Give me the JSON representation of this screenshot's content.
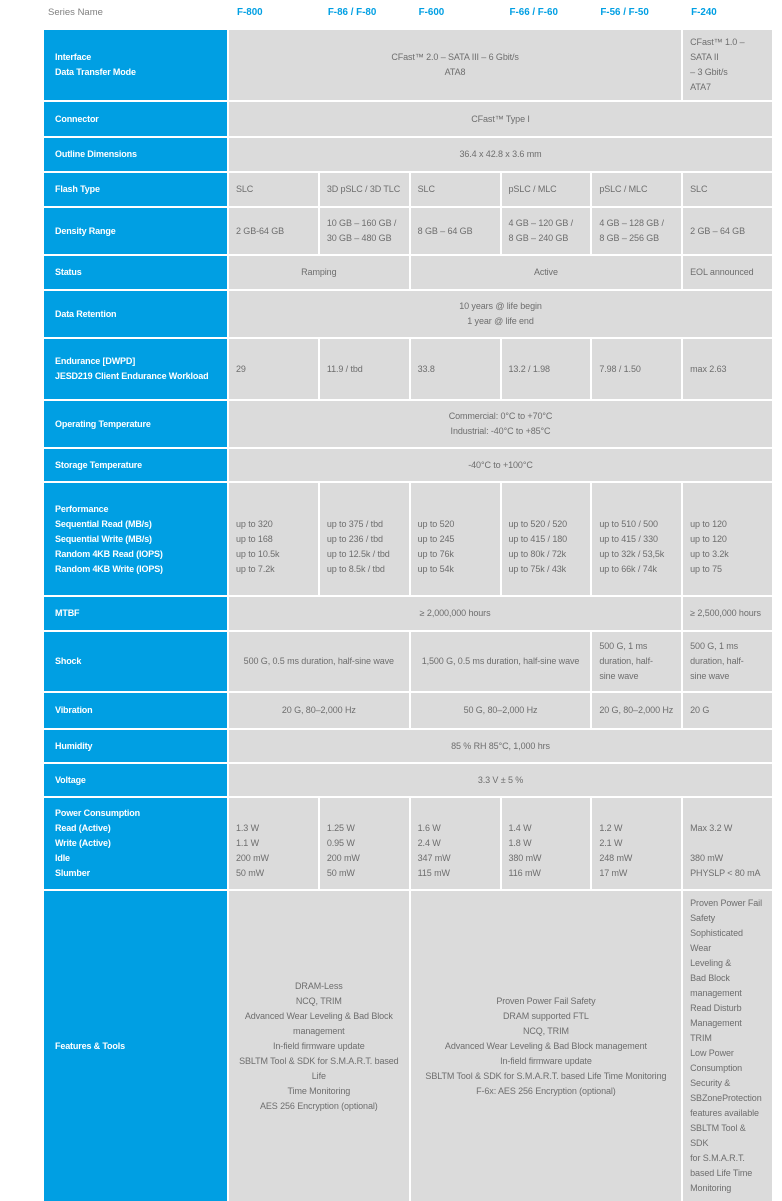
{
  "colors": {
    "accent_blue": "#009fe3",
    "cell_background": "#dbdbdb",
    "cell_text": "#6e6e6e",
    "label_text": "#ffffff",
    "header_label_text": "#7f7f7f"
  },
  "table": {
    "header": {
      "series_label": "Series Name",
      "columns": [
        "F-800",
        "F-86 / F-80",
        "F-600",
        "F-66 / F-60",
        "F-56 / F-50",
        "F-240"
      ]
    },
    "rows": [
      {
        "label": "Interface\nData Transfer Mode",
        "cells": [
          "CFast™ 2.0 – SATA III – 6 Gbit/s\nATA8",
          "CFast™ 1.0 –SATA II\n– 3 Gbit/s\nATA7"
        ]
      },
      {
        "label": "Connector",
        "cells": [
          "CFast™ Type I"
        ]
      },
      {
        "label": "Outline Dimensions",
        "cells": [
          "36.4 x 42.8 x 3.6 mm"
        ]
      },
      {
        "label": "Flash Type",
        "cells": [
          "SLC",
          "3D pSLC / 3D TLC",
          "SLC",
          "pSLC / MLC",
          "pSLC / MLC",
          "SLC"
        ]
      },
      {
        "label": "Density Range",
        "cells": [
          "2 GB-64 GB",
          "10 GB – 160 GB /\n30 GB – 480 GB",
          "8 GB – 64 GB",
          "4 GB – 120 GB /\n8 GB – 240 GB",
          "4 GB – 128 GB /\n8 GB – 256 GB",
          "2 GB – 64 GB"
        ]
      },
      {
        "label": "Status",
        "cells": [
          "Ramping",
          "Active",
          "EOL announced"
        ]
      },
      {
        "label": "Data Retention",
        "cells": [
          "10 years @ life begin\n1 year @ life end"
        ]
      },
      {
        "label": "Endurance [DWPD]\nJESD219 Client Endurance Workload",
        "cells": [
          "29",
          "11.9 / tbd",
          "33.8",
          "13.2 / 1.98",
          "7.98 / 1.50",
          "max 2.63"
        ]
      },
      {
        "label": "Operating Temperature",
        "cells": [
          "Commercial: 0°C to +70°C\nIndustrial: -40°C to +85°C"
        ]
      },
      {
        "label": "Storage Temperature",
        "cells": [
          "-40°C to +100°C"
        ]
      },
      {
        "label": "Performance\nSequential Read (MB/s)\nSequential Write (MB/s)\nRandom 4KB Read (IOPS)\nRandom 4KB Write (IOPS)",
        "cells": [
          "\nup to 320\nup to 168\nup to 10.5k\nup to 7.2k",
          "\nup to 375 / tbd\nup to 236 / tbd\nup to 12.5k / tbd\nup to 8.5k / tbd",
          "\nup to 520\nup to 245\nup to 76k\nup to 54k",
          "\nup to 520 / 520\nup to 415 / 180\nup to 80k / 72k\nup to 75k / 43k",
          "\nup to 510 / 500\nup to 415 / 330\nup to 32k / 53,5k\nup to 66k / 74k",
          "\nup to 120\nup to 120\nup to 3.2k\nup to 75"
        ]
      },
      {
        "label": "MTBF",
        "cells": [
          "≥ 2,000,000 hours",
          "≥ 2,500,000 hours"
        ]
      },
      {
        "label": "Shock",
        "cells": [
          "500 G, 0.5 ms duration, half-sine wave",
          "1,500 G, 0.5 ms duration, half-sine wave",
          "500 G, 1 ms\nduration, half-\nsine wave",
          "500 G, 1 ms\nduration, half-\nsine wave"
        ]
      },
      {
        "label": "Vibration",
        "cells": [
          "20 G, 80–2,000 Hz",
          "50 G, 80–2,000 Hz",
          "20 G, 80–2,000 Hz",
          "20 G"
        ]
      },
      {
        "label": "Humidity",
        "cells": [
          "85 % RH 85°C, 1,000 hrs"
        ]
      },
      {
        "label": "Voltage",
        "cells": [
          "3.3 V ± 5 %"
        ]
      },
      {
        "label": "Power Consumption\nRead (Active)\nWrite (Active)\nIdle\nSlumber",
        "cells": [
          "\n1.3 W\n1.1 W\n200 mW\n50 mW",
          "\n1.25 W\n0.95 W\n200 mW\n50 mW",
          "\n1.6 W\n2.4 W\n347 mW\n115 mW",
          "\n1.4 W\n1.8 W\n380 mW\n116 mW",
          "\n1.2 W\n2.1 W\n248 mW\n17 mW",
          "\nMax 3.2 W\n\n380 mW\nPHYSLP < 80 mA"
        ]
      },
      {
        "label": "Features & Tools",
        "cells": [
          "DRAM-Less\nNCQ, TRIM\nAdvanced Wear Leveling & Bad Block\nmanagement\nIn-field firmware update\nSBLTM Tool & SDK for S.M.A.R.T. based Life\nTime Monitoring\nAES 256 Encryption (optional)",
          "Proven Power Fail Safety\nDRAM supported FTL\nNCQ, TRIM\nAdvanced Wear Leveling & Bad Block management\nIn-field firmware update\nSBLTM Tool & SDK for S.M.A.R.T. based Life Time Monitoring\nF-6x: AES 256 Encryption (optional)",
          "Proven Power Fail\nSafety\nSophisticated Wear\nLeveling &\nBad Block\nmanagement\nRead Disturb\nManagement\nTRIM\nLow Power\nConsumption\nSecurity &\nSBZoneProtection\nfeatures available\nSBLTM Tool & SDK\nfor S.M.A.R.T.\nbased Life Time\nMonitoring"
        ]
      }
    ]
  }
}
